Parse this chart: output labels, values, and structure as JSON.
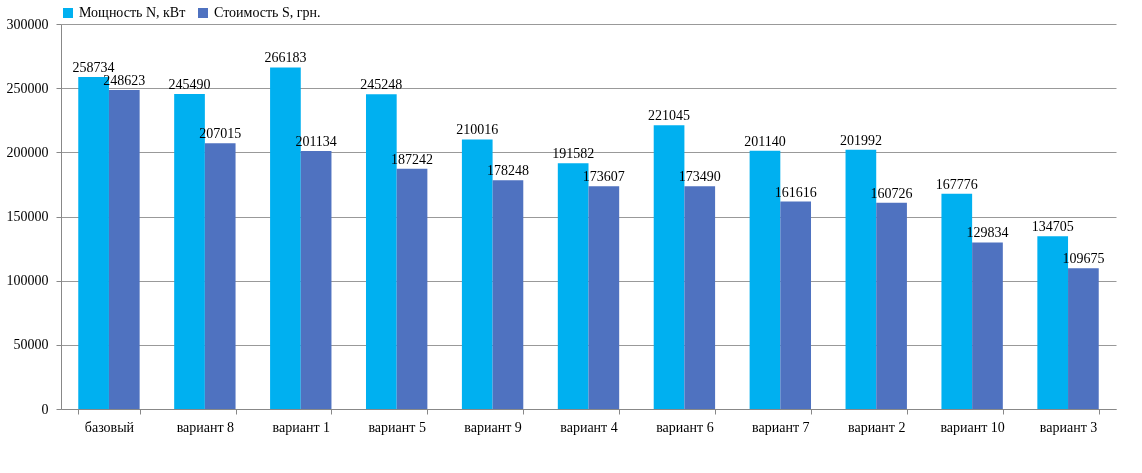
{
  "chart_data": {
    "type": "bar",
    "categories": [
      "базовый",
      "вариант 8",
      "вариант 1",
      "вариант 5",
      "вариант 9",
      "вариант 4",
      "вариант 6",
      "вариант 7",
      "вариант 2",
      "вариант 10",
      "вариант 3"
    ],
    "series": [
      {
        "name": "Мощность N, кВт",
        "color": "#00b0f0",
        "values": [
          258734,
          245490,
          266183,
          245248,
          210016,
          191582,
          221045,
          201140,
          201992,
          167776,
          134705
        ]
      },
      {
        "name": "Стоимость S, грн.",
        "color": "#4f72c0",
        "values": [
          248623,
          207015,
          201134,
          187242,
          178248,
          173607,
          173490,
          161616,
          160726,
          129834,
          109675
        ]
      }
    ],
    "ylim": [
      0,
      300000
    ],
    "yticks": [
      0,
      50000,
      100000,
      150000,
      200000,
      250000,
      300000
    ],
    "grid": "y",
    "legend": "top left",
    "data_labels": true
  }
}
